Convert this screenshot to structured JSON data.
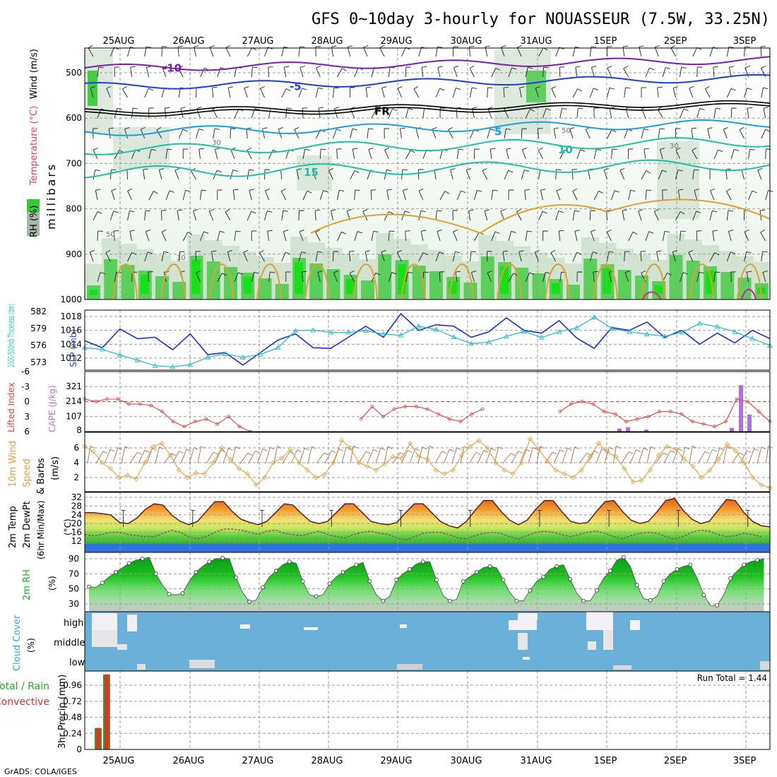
{
  "title": "GFS 0~10day 3-hourly for NOUASSEUR (7.5W, 33.25N)",
  "credit": "GrADS: COLA/IGES",
  "dates": [
    "25AUG",
    "26AUG",
    "27AUG",
    "28AUG",
    "29AUG",
    "30AUG",
    "31AUG",
    "1SEP",
    "2SEP",
    "3SEP"
  ],
  "colors": {
    "temp_contour_cold": "#7a1fb0",
    "temp_contour_blue": "#1f3fd0",
    "temp_contour_cyan": "#1aa0e0",
    "temp_contour_teal": "#1fc0a8",
    "warm_contour": "#e0a030",
    "slp": "#1f2fd0",
    "thickness": "#20b8c8",
    "lifted_index": "#e04040",
    "cape": "#b070e0",
    "wind": "#e0a040",
    "cloud_bg": "#6ab0d8",
    "precip_total": "#22aa22",
    "precip_conv": "#e03030"
  },
  "chart_data": [
    {
      "type": "heatmap",
      "panel": "upper_air",
      "ylabel": "millibars",
      "left_labels": [
        "RH (%)",
        "Temperature (°C)",
        "Wind (m/s)"
      ],
      "yticks": [
        500,
        600,
        700,
        800,
        900,
        1000
      ],
      "ylim": [
        1000,
        450
      ],
      "temperature_contours": [
        {
          "label": "-10",
          "approx_level_mb": 490
        },
        {
          "label": "-5",
          "approx_level_mb": 530
        },
        {
          "label": "FR",
          "approx_level_mb": 585
        },
        {
          "label": "5",
          "approx_level_mb": 630
        },
        {
          "label": "10",
          "approx_level_mb": 670
        },
        {
          "label": "15",
          "approx_level_mb": 720
        }
      ],
      "rh_contour_labels": [
        "30",
        "50"
      ]
    },
    {
      "type": "line",
      "panel": "slp_thickness",
      "series": [
        {
          "name": "SLP (mb)",
          "yticks": [
            1012,
            1014,
            1016,
            1018
          ],
          "values": [
            1014.5,
            1013.5,
            1016.2,
            1014.8,
            1015,
            1013.2,
            1015.5,
            1012.5,
            1012.8,
            1011,
            1012.8,
            1014.6,
            1015.5,
            1013.5,
            1013.4,
            1015,
            1016.6,
            1015,
            1018.4,
            1016,
            1016.8,
            1016.6,
            1015,
            1015.8,
            1017.8,
            1016,
            1015.6,
            1017.4,
            1014.9,
            1013.4,
            1016.4,
            1016,
            1017.2,
            1015,
            1016,
            1014,
            1015.6,
            1014.2,
            1016,
            1014.8
          ]
        },
        {
          "name": "1000-500mb Thickness (dm)",
          "yticks": [
            573,
            576,
            579,
            582
          ],
          "values": [
            575.6,
            575.3,
            574.3,
            573.4,
            572.4,
            572.2,
            572.6,
            573.9,
            574.5,
            573.9,
            574.4,
            575.6,
            578.6,
            578.7,
            578.3,
            578.3,
            578.6,
            578.0,
            577.8,
            579.4,
            578.8,
            577.5,
            576.3,
            576.6,
            577.6,
            578.5,
            577.4,
            578.4,
            579.1,
            581.0,
            579.0,
            578.4,
            578.0,
            577.6,
            578.3,
            579.9,
            579.3,
            578.4,
            577.2,
            576.0
          ]
        }
      ]
    },
    {
      "type": "bar",
      "panel": "cape_lifted_index",
      "series": [
        {
          "name": "Lifted Index",
          "yticks": [
            -6,
            -3,
            0,
            3,
            6
          ],
          "values": [
            -0.5,
            0.0,
            -0.5,
            -0.5,
            0.5,
            0.5,
            0.8,
            2.0,
            4.0,
            5.0,
            4.0,
            3.5,
            4.5,
            3.0,
            5.0,
            6.0,
            null,
            null,
            null,
            null,
            null,
            null,
            null,
            null,
            null,
            3.5,
            1.0,
            3.0,
            1.5,
            1.0,
            1.0,
            1.5,
            2.5,
            3.5,
            4.0,
            2.5,
            1.5,
            null,
            null,
            null,
            null,
            null,
            null,
            2.0,
            0.5,
            0.0,
            0.5,
            2.0,
            2.5,
            4.0,
            3.5,
            3.0,
            2.0,
            2.0,
            2.5,
            4.0,
            4.5,
            5.0,
            4.0,
            -0.5,
            0.0,
            2.0,
            4.0
          ]
        },
        {
          "name": "CAPE (J/kg)",
          "yticks": [
            8,
            107,
            214,
            321
          ],
          "bars": [
            {
              "time": "1SEP 03Z",
              "value": 20
            },
            {
              "time": "1SEP 06Z",
              "value": 30
            },
            {
              "time": "1SEP 15Z",
              "value": 12
            },
            {
              "time": "2SEP 21Z",
              "value": 25
            },
            {
              "time": "3SEP 00Z",
              "value": 330
            },
            {
              "time": "3SEP 03Z",
              "value": 120
            }
          ]
        }
      ]
    },
    {
      "type": "line",
      "panel": "wind_10m",
      "series": [
        {
          "name": "10m Wind Speed (m/s)",
          "yticks": [
            2,
            4,
            6
          ],
          "values": [
            6.2,
            5.5,
            4.0,
            3.2,
            2.0,
            2.3,
            1.8,
            4.0,
            6.2,
            6.6,
            5.0,
            3.0,
            2.0,
            2.6,
            2.5,
            4.0,
            6.0,
            4.4,
            3.2,
            2.5,
            1.0,
            2.0,
            4.0,
            4.6,
            5.8,
            4.0,
            3.0,
            2.0,
            2.4,
            4.0,
            7.0,
            6.0,
            4.0,
            3.5,
            3.0,
            3.8,
            4.8,
            4.6,
            6.6,
            4.8,
            4.5,
            3.0,
            2.5,
            3.0,
            5.0,
            6.2,
            7.0,
            6.0,
            4.0,
            3.0,
            2.5,
            4.0,
            7.2,
            5.8,
            4.2,
            3.0,
            2.5,
            2.0,
            3.0,
            4.8,
            6.6,
            5.5,
            4.8,
            3.2,
            1.4,
            1.6,
            3.0,
            5.0,
            6.2,
            5.8,
            4.5,
            3.5,
            2.0,
            3.0,
            4.5,
            6.5,
            5.6,
            4.0,
            2.0,
            1.0,
            0.6
          ]
        }
      ]
    },
    {
      "type": "area",
      "panel": "temp_2m",
      "ylabel": "(°C)",
      "left_labels": [
        "2m Temp",
        "2m DewPt",
        "(6hr Min/Max)"
      ],
      "yticks": [
        12,
        16,
        20,
        24,
        28,
        32
      ],
      "temperature": [
        25,
        25,
        24.5,
        24,
        20.5,
        20,
        22.5,
        26.5,
        29,
        28.5,
        24,
        21,
        19.5,
        21,
        25.5,
        30,
        30,
        25.5,
        22,
        20.5,
        19.5,
        21,
        25,
        29,
        28.5,
        24.5,
        21,
        20,
        21,
        25,
        29,
        29,
        25,
        21,
        20,
        19.5,
        20.5,
        25,
        29,
        29,
        25,
        21,
        19,
        18,
        21,
        26,
        30.5,
        30.5,
        25.5,
        21.5,
        19.5,
        21.5,
        26.5,
        30.5,
        30.5,
        25.5,
        21,
        20,
        20.5,
        25.5,
        30,
        30.5,
        25.5,
        21.5,
        20,
        21,
        25.5,
        30.5,
        31.5,
        26,
        22,
        20,
        21,
        26,
        31,
        30.5,
        25,
        21,
        19,
        18.5
      ],
      "dewpoint": [
        15,
        14.5,
        15,
        16,
        16,
        15,
        14.5,
        14,
        14,
        15.5,
        17,
        16,
        14,
        13,
        14,
        16,
        17.5,
        17.5,
        17,
        16,
        15,
        16.5,
        17,
        15.5,
        15,
        14.5,
        15.5,
        16.5,
        15,
        14,
        13.5,
        15,
        16,
        16.5,
        15.5,
        15,
        13.5,
        12.5,
        14,
        15.5,
        16,
        16,
        15,
        13.5,
        13,
        14.5,
        15.5,
        16,
        15.5,
        14,
        13,
        14.5,
        16,
        16.5,
        16,
        15,
        14,
        15,
        16,
        16.5,
        15.5,
        14,
        13,
        14.5,
        15.5,
        16,
        15.5,
        14,
        13,
        14,
        16,
        17,
        16.5,
        15,
        14,
        14.5,
        15.5,
        15,
        14
      ]
    },
    {
      "type": "area",
      "panel": "rh_2m",
      "ylabel": "(%)",
      "left_labels": [
        "2m RH"
      ],
      "yticks": [
        30,
        50,
        70,
        90
      ],
      "values": [
        53,
        52,
        58,
        66,
        72,
        78,
        84,
        88,
        90,
        92,
        70,
        55,
        43,
        42,
        44,
        60,
        72,
        80,
        86,
        90,
        91,
        90,
        65,
        45,
        33,
        35,
        52,
        66,
        74,
        82,
        86,
        84,
        60,
        42,
        40,
        42,
        57,
        66,
        72,
        78,
        82,
        85,
        60,
        42,
        34,
        40,
        62,
        70,
        76,
        83,
        86,
        86,
        62,
        41,
        34,
        36,
        60,
        66,
        72,
        78,
        80,
        78,
        62,
        45,
        34,
        34,
        48,
        60,
        66,
        76,
        80,
        82,
        63,
        44,
        34,
        34,
        48,
        64,
        74,
        88,
        92,
        80,
        55,
        37,
        35,
        40,
        60,
        70,
        76,
        80,
        82,
        64,
        42,
        28,
        28,
        42,
        64,
        74,
        82,
        86,
        88,
        90
      ]
    },
    {
      "type": "heatmap",
      "panel": "cloud_cover",
      "ylabel": "(%)",
      "left_labels": [
        "Cloud Cover"
      ],
      "levels": [
        "high",
        "middle",
        "low"
      ]
    },
    {
      "type": "bar",
      "panel": "precip",
      "ylabel": "3hr Precip (mm)",
      "left_labels": [
        "Total / Rain",
        "Convective"
      ],
      "yticks": [
        0,
        0.24,
        0.48,
        0.72,
        0.96
      ],
      "run_total_label": "Run Total = 1.44",
      "bars": [
        {
          "time": "24AUG 21Z",
          "total": 0.32,
          "convective": 0.32
        },
        {
          "time": "25AUG 03Z",
          "total": 1.12,
          "convective": 1.12
        }
      ]
    }
  ]
}
